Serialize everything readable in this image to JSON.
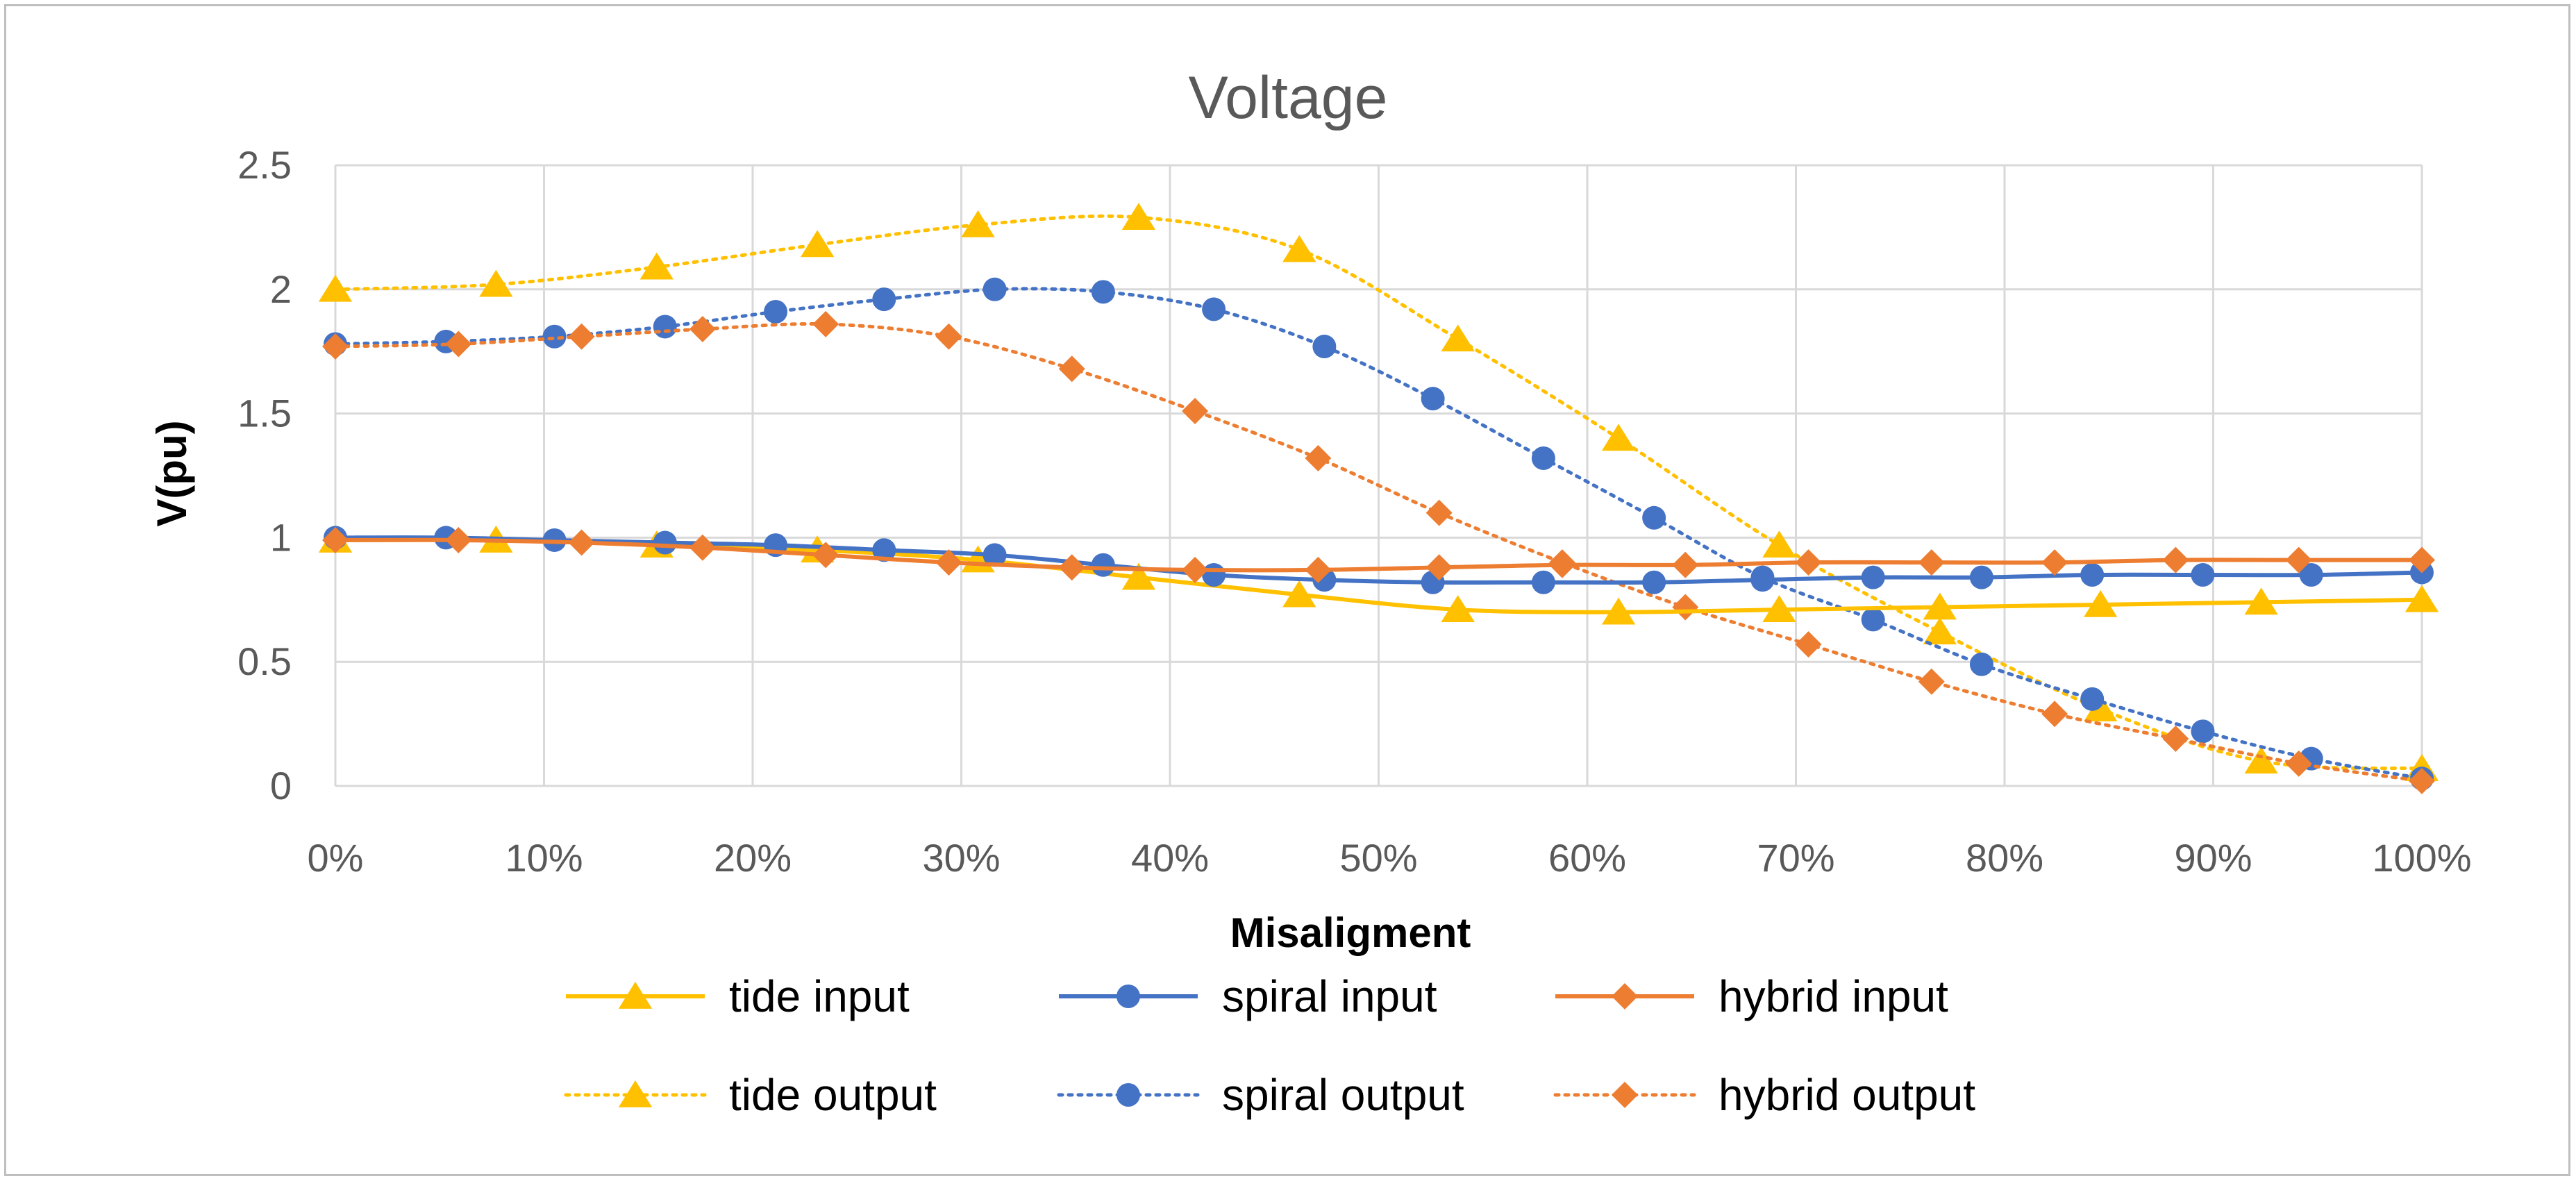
{
  "chart_data": {
    "type": "line",
    "title": "Voltage",
    "xlabel": "Misaligment",
    "ylabel": "V(pu)",
    "xlim": [
      0,
      1
    ],
    "ylim": [
      0,
      2.5
    ],
    "x_ticks": [
      "0%",
      "10%",
      "20%",
      "30%",
      "40%",
      "50%",
      "60%",
      "70%",
      "80%",
      "90%",
      "100%"
    ],
    "y_ticks": [
      "0",
      "0.5",
      "1",
      "1.5",
      "2",
      "2.5"
    ],
    "grid": true,
    "legend_position": "bottom",
    "series": [
      {
        "name": "tide input",
        "color": "#FFC000",
        "marker": "triangle",
        "dash": "solid",
        "x": [
          0,
          0.077,
          0.154,
          0.231,
          0.308,
          0.385,
          0.462,
          0.538,
          0.615,
          0.692,
          0.769,
          0.846,
          0.923,
          1.0
        ],
        "y": [
          0.99,
          0.99,
          0.97,
          0.95,
          0.91,
          0.84,
          0.77,
          0.71,
          0.7,
          0.71,
          0.72,
          0.73,
          0.74,
          0.75
        ]
      },
      {
        "name": "spiral input",
        "color": "#4472C4",
        "marker": "circle",
        "dash": "solid",
        "x": [
          0,
          0.053,
          0.105,
          0.158,
          0.211,
          0.263,
          0.316,
          0.368,
          0.421,
          0.474,
          0.526,
          0.579,
          0.632,
          0.684,
          0.737,
          0.789,
          0.842,
          0.895,
          0.947,
          1.0
        ],
        "y": [
          1.0,
          1.0,
          0.99,
          0.98,
          0.97,
          0.95,
          0.93,
          0.89,
          0.85,
          0.83,
          0.82,
          0.82,
          0.82,
          0.83,
          0.84,
          0.84,
          0.85,
          0.85,
          0.85,
          0.86
        ]
      },
      {
        "name": "hybrid input",
        "color": "#ED7D31",
        "marker": "diamond",
        "dash": "solid",
        "x": [
          0,
          0.059,
          0.118,
          0.176,
          0.235,
          0.294,
          0.353,
          0.412,
          0.471,
          0.529,
          0.588,
          0.647,
          0.706,
          0.765,
          0.824,
          0.882,
          0.941,
          1.0
        ],
        "y": [
          0.99,
          0.99,
          0.98,
          0.96,
          0.93,
          0.9,
          0.88,
          0.87,
          0.87,
          0.88,
          0.89,
          0.89,
          0.9,
          0.9,
          0.9,
          0.91,
          0.91,
          0.91
        ]
      },
      {
        "name": "tide output",
        "color": "#FFC000",
        "marker": "triangle",
        "dash": "dotted",
        "x": [
          0,
          0.077,
          0.154,
          0.231,
          0.308,
          0.385,
          0.462,
          0.538,
          0.615,
          0.692,
          0.769,
          0.846,
          0.923,
          1.0
        ],
        "y": [
          2.0,
          2.02,
          2.09,
          2.18,
          2.26,
          2.29,
          2.16,
          1.8,
          1.4,
          0.97,
          0.62,
          0.31,
          0.1,
          0.07
        ]
      },
      {
        "name": "spiral output",
        "color": "#4472C4",
        "marker": "circle",
        "dash": "dotted",
        "x": [
          0,
          0.053,
          0.105,
          0.158,
          0.211,
          0.263,
          0.316,
          0.368,
          0.421,
          0.474,
          0.526,
          0.579,
          0.632,
          0.684,
          0.737,
          0.789,
          0.842,
          0.895,
          0.947,
          1.0
        ],
        "y": [
          1.78,
          1.79,
          1.81,
          1.85,
          1.91,
          1.96,
          2.0,
          1.99,
          1.92,
          1.77,
          1.56,
          1.32,
          1.08,
          0.84,
          0.67,
          0.49,
          0.35,
          0.22,
          0.11,
          0.03
        ]
      },
      {
        "name": "hybrid output",
        "color": "#ED7D31",
        "marker": "diamond",
        "dash": "dotted",
        "x": [
          0,
          0.059,
          0.118,
          0.176,
          0.235,
          0.294,
          0.353,
          0.412,
          0.471,
          0.529,
          0.588,
          0.647,
          0.706,
          0.765,
          0.824,
          0.882,
          0.941,
          1.0
        ],
        "y": [
          1.77,
          1.78,
          1.81,
          1.84,
          1.86,
          1.81,
          1.68,
          1.51,
          1.32,
          1.1,
          0.9,
          0.72,
          0.57,
          0.42,
          0.29,
          0.19,
          0.09,
          0.02
        ]
      }
    ]
  }
}
